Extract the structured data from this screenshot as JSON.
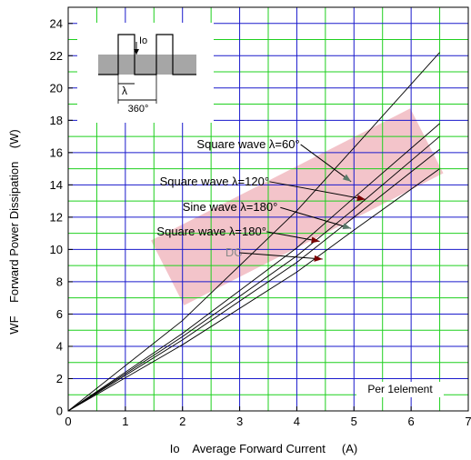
{
  "chart_data": {
    "type": "line",
    "title": "",
    "xlabel": "Io    Average Forward Current     (A)",
    "ylabel": "WF    Forward Power Dissipation    (W)",
    "xlim": [
      0,
      7
    ],
    "ylim": [
      0,
      25
    ],
    "x_ticks": [
      "0",
      "1",
      "2",
      "3",
      "4",
      "5",
      "6",
      "7"
    ],
    "y_ticks": [
      "0",
      "2",
      "4",
      "6",
      "8",
      "10",
      "12",
      "14",
      "16",
      "18",
      "20",
      "22",
      "24"
    ],
    "grid": true,
    "grid_minor_color": "#1fd01f",
    "grid_major_color": "#1a1acc",
    "series": [
      {
        "name": "Square wave λ=60°",
        "x": [
          0,
          2,
          4,
          5,
          6.5
        ],
        "y": [
          0,
          5.6,
          12.4,
          16.3,
          22.2
        ]
      },
      {
        "name": "Square wave λ=120°",
        "x": [
          0,
          2,
          4,
          5,
          6.5
        ],
        "y": [
          0,
          4.8,
          10.1,
          13.2,
          17.8
        ]
      },
      {
        "name": "Sine wave λ=180°",
        "x": [
          0,
          2,
          4,
          5,
          6.5
        ],
        "y": [
          0,
          4.6,
          9.6,
          12.5,
          17.0
        ]
      },
      {
        "name": "Square wave λ=180°",
        "x": [
          0,
          2,
          4,
          5,
          6.5
        ],
        "y": [
          0,
          4.4,
          9.2,
          12.0,
          16.2
        ]
      },
      {
        "name": "DC",
        "x": [
          0,
          2,
          4,
          5,
          6.5
        ],
        "y": [
          0,
          4.1,
          8.6,
          11.2,
          15.0
        ]
      }
    ],
    "annotations": [
      {
        "text": "Square wave λ=60°",
        "tx": 2.25,
        "ty": 16.5,
        "ax": 4.95,
        "ay": 14.2
      },
      {
        "text": "Square wave λ=120°",
        "tx": 1.6,
        "ty": 14.2,
        "ax": 5.2,
        "ay": 13.1
      },
      {
        "text": "Sine wave λ=180°",
        "tx": 2.0,
        "ty": 12.6,
        "ax": 4.95,
        "ay": 11.3
      },
      {
        "text": "Square wave λ=180°",
        "tx": 1.55,
        "ty": 11.1,
        "ax": 4.4,
        "ay": 10.5
      },
      {
        "text": "DC",
        "tx": 2.75,
        "ty": 9.8,
        "ax": 4.45,
        "ay": 9.4
      }
    ],
    "note": "Per 1element",
    "inset": {
      "io_label": "Io",
      "lambda_label": "λ",
      "period_label": "360°"
    }
  }
}
